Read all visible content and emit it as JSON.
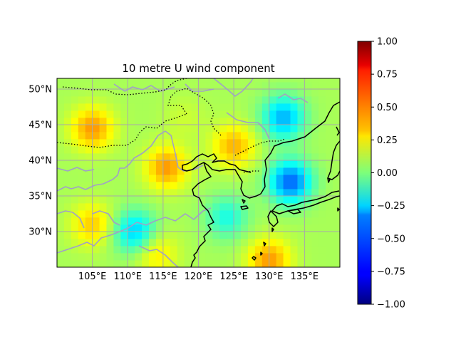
{
  "figure": {
    "title": "10 metre U wind component"
  },
  "map": {
    "projection": "PlateCarree",
    "extent": {
      "lon_min": 100,
      "lon_max": 140,
      "lat_min": 25,
      "lat_max": 51.5
    },
    "gridlines": true,
    "gridline_color": "#a9a9a9",
    "coastline_color": "#000000",
    "river_color": "#a0a0c8",
    "x_ticks": [
      {
        "value": 105,
        "label": "105°E"
      },
      {
        "value": 110,
        "label": "110°E"
      },
      {
        "value": 115,
        "label": "115°E"
      },
      {
        "value": 120,
        "label": "120°E"
      },
      {
        "value": 125,
        "label": "125°E"
      },
      {
        "value": 130,
        "label": "130°E"
      },
      {
        "value": 135,
        "label": "135°E"
      }
    ],
    "y_ticks": [
      {
        "value": 30,
        "label": "30°N"
      },
      {
        "value": 35,
        "label": "35°N"
      },
      {
        "value": 40,
        "label": "40°N"
      },
      {
        "value": 45,
        "label": "45°N"
      },
      {
        "value": 50,
        "label": "50°N"
      }
    ]
  },
  "colorbar": {
    "colormap": "jet",
    "vmin": -1.0,
    "vmax": 1.0,
    "ticks": [
      {
        "value": 1.0,
        "label": "1.00"
      },
      {
        "value": 0.75,
        "label": "0.75"
      },
      {
        "value": 0.5,
        "label": "0.50"
      },
      {
        "value": 0.25,
        "label": "0.25"
      },
      {
        "value": 0.0,
        "label": "0.00"
      },
      {
        "value": -0.25,
        "label": "−0.25"
      },
      {
        "value": -0.5,
        "label": "−0.50"
      },
      {
        "value": -0.75,
        "label": "−0.75"
      },
      {
        "value": -1.0,
        "label": "−1.00"
      }
    ]
  },
  "chart_data": {
    "type": "heatmap",
    "title": "10 metre U wind component",
    "xlabel": "",
    "ylabel": "",
    "xlim": [
      100,
      140
    ],
    "ylim": [
      25,
      51.5
    ],
    "colormap": "jet",
    "value_range": [
      -1.0,
      1.0
    ],
    "grid": true,
    "legend": "colorbar right",
    "field_features": [
      {
        "lon": 105,
        "lat": 44.5,
        "value": 0.45
      },
      {
        "lon": 115.5,
        "lat": 39,
        "value": 0.45
      },
      {
        "lon": 125,
        "lat": 42,
        "value": 0.4
      },
      {
        "lon": 105,
        "lat": 31,
        "value": 0.35
      },
      {
        "lon": 111,
        "lat": 30,
        "value": -0.35
      },
      {
        "lon": 133,
        "lat": 37,
        "value": -0.55
      },
      {
        "lon": 132,
        "lat": 46,
        "value": -0.4
      },
      {
        "lon": 124,
        "lat": 32,
        "value": -0.2
      },
      {
        "lon": 130,
        "lat": 26,
        "value": 0.45
      },
      {
        "lon": 114,
        "lat": 27,
        "value": 0.3
      },
      {
        "lon": 118,
        "lat": 46,
        "value": 0.15
      }
    ]
  }
}
